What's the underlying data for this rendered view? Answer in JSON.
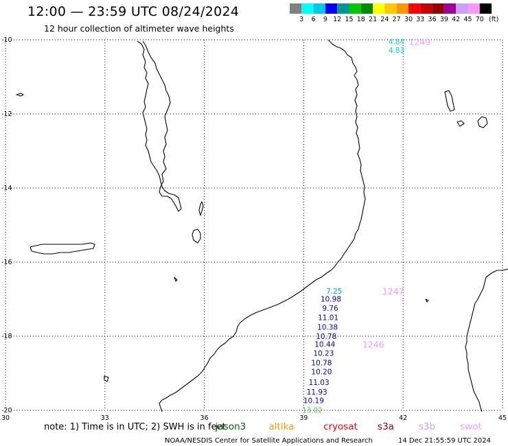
{
  "header": {
    "title": "12:00 — 23:59 UTC 08/24/2024",
    "subtitle": "12 hour collection of altimeter wave heights"
  },
  "legend": {
    "unit": "(ft)",
    "colors": [
      "#808080",
      "#00ffff",
      "#00c8e8",
      "#0000ff",
      "#009696",
      "#00c800",
      "#008c00",
      "#ffff00",
      "#ffc800",
      "#ff9600",
      "#ff0000",
      "#c80000",
      "#960000",
      "#a0009a",
      "#c8a0ff",
      "#ff96ff",
      "#000000"
    ],
    "labels": [
      "3",
      "6",
      "9",
      "12",
      "15",
      "18",
      "21",
      "24",
      "27",
      "30",
      "33",
      "36",
      "39",
      "42",
      "45",
      "70"
    ]
  },
  "axes": {
    "x_ticks": [
      {
        "lon": 30,
        "label": "30"
      },
      {
        "lon": 33,
        "label": "33"
      },
      {
        "lon": 36,
        "label": "36"
      },
      {
        "lon": 39,
        "label": "39"
      },
      {
        "lon": 42,
        "label": "42"
      },
      {
        "lon": 45,
        "label": "45"
      }
    ],
    "y_ticks": [
      {
        "lat": -10,
        "label": "-10"
      },
      {
        "lat": -12,
        "label": "-12"
      },
      {
        "lat": -14,
        "label": "-14"
      },
      {
        "lat": -16,
        "label": "-16"
      },
      {
        "lat": -18,
        "label": "-18"
      },
      {
        "lat": -20,
        "label": "-20"
      }
    ]
  },
  "observations": [
    {
      "text": "4.84",
      "color": "#00d2e6",
      "lon": 41.8,
      "lat": -10.05
    },
    {
      "text": "4.83",
      "color": "#00d2e6",
      "lon": 41.8,
      "lat": -10.28
    },
    {
      "text": "7.25",
      "color": "#00b4c8",
      "lon": 39.92,
      "lat": -16.78
    },
    {
      "text": "10.98",
      "color": "#0000c8",
      "lon": 39.82,
      "lat": -16.99
    },
    {
      "text": "9.76",
      "color": "#0000c8",
      "lon": 39.8,
      "lat": -17.24
    },
    {
      "text": "11.01",
      "color": "#0000c8",
      "lon": 39.74,
      "lat": -17.49
    },
    {
      "text": "10.38",
      "color": "#0000c8",
      "lon": 39.72,
      "lat": -17.75
    },
    {
      "text": "10.78",
      "color": "#0000c8",
      "lon": 39.68,
      "lat": -18.0
    },
    {
      "text": "10.44",
      "color": "#0000c8",
      "lon": 39.64,
      "lat": -18.21
    },
    {
      "text": "10.23",
      "color": "#0000c8",
      "lon": 39.6,
      "lat": -18.45
    },
    {
      "text": "10.78",
      "color": "#0000c8",
      "lon": 39.54,
      "lat": -18.71
    },
    {
      "text": "10.20",
      "color": "#0000c8",
      "lon": 39.54,
      "lat": -18.95
    },
    {
      "text": "11.03",
      "color": "#0000c8",
      "lon": 39.46,
      "lat": -19.24
    },
    {
      "text": "11.93",
      "color": "#0000c8",
      "lon": 39.4,
      "lat": -19.5
    },
    {
      "text": "10.19",
      "color": "#0000c8",
      "lon": 39.3,
      "lat": -19.73
    },
    {
      "text": "13.02",
      "color": "#50c850",
      "lon": 39.26,
      "lat": -19.99
    }
  ],
  "pass_times": [
    {
      "text": "1249",
      "color": "#ff96ff",
      "lon": 42.5,
      "lat": -10.05
    },
    {
      "text": "1247",
      "color": "#ff96ff",
      "lon": 41.7,
      "lat": -16.78
    },
    {
      "text": "1246",
      "color": "#ff96ff",
      "lon": 41.1,
      "lat": -18.21
    }
  ],
  "footer": {
    "note": "note:  1) Time is in UTC; 2) SWH is in feet",
    "satellites": [
      {
        "name": "jason3",
        "color": "#006400"
      },
      {
        "name": "altika",
        "color": "#ff9600"
      },
      {
        "name": "cryosat",
        "color": "#ff0000"
      },
      {
        "name": "s3a",
        "color": "#a00000"
      },
      {
        "name": "s3b",
        "color": "#c8a0ff"
      },
      {
        "name": "swot",
        "color": "#ff96ff"
      }
    ],
    "credit": "NOAA/NESDIS Center for Satellite Applications and Research",
    "timestamp": "14 Dec 21:55:59 UTC 2024"
  },
  "colors": {
    "coastline": "#000000",
    "graticule": "#000000",
    "background": "#ffffff"
  }
}
